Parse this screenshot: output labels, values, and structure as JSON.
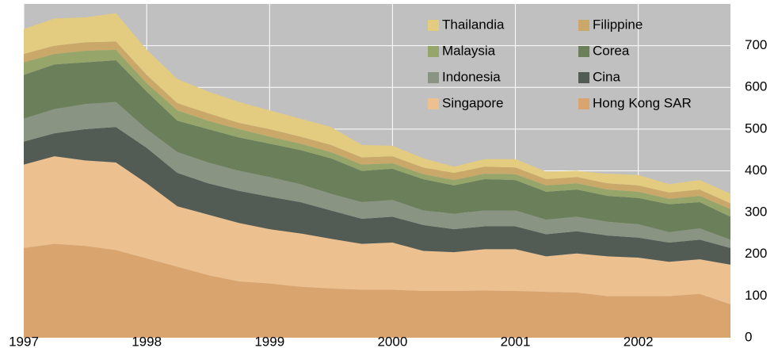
{
  "chart_data": {
    "type": "stacked_area",
    "x": [
      1997,
      1997.25,
      1997.5,
      1997.75,
      1998,
      1998.25,
      1998.5,
      1998.75,
      1999,
      1999.25,
      1999.5,
      1999.75,
      2000,
      2000.25,
      2000.5,
      2000.75,
      2001,
      2001.25,
      2001.5,
      2001.75,
      2002,
      2002.25,
      2002.5,
      2002.75
    ],
    "series": [
      {
        "name": "Thailandia",
        "color": "#e3cc80",
        "values": [
          60,
          65,
          60,
          68,
          60,
          58,
          52,
          50,
          45,
          43,
          43,
          30,
          25,
          22,
          15,
          18,
          20,
          18,
          15,
          23,
          25,
          20,
          23,
          23
        ]
      },
      {
        "name": "Filippine",
        "color": "#c9a86a",
        "values": [
          20,
          20,
          20,
          20,
          20,
          17,
          18,
          15,
          18,
          17,
          17,
          17,
          17,
          16,
          17,
          17,
          16,
          15,
          15,
          15,
          15,
          15,
          15,
          14
        ]
      },
      {
        "name": "Malaysia",
        "color": "#96a66a",
        "values": [
          30,
          25,
          28,
          25,
          20,
          25,
          20,
          20,
          17,
          15,
          15,
          15,
          13,
          12,
          13,
          13,
          14,
          15,
          15,
          15,
          15,
          13,
          15,
          18
        ]
      },
      {
        "name": "Corea",
        "color": "#6b7f5b",
        "values": [
          105,
          107,
          100,
          100,
          90,
          75,
          80,
          80,
          80,
          82,
          85,
          75,
          75,
          75,
          68,
          75,
          73,
          67,
          65,
          62,
          63,
          67,
          63,
          55
        ]
      },
      {
        "name": "Indonesia",
        "color": "#8a9483",
        "values": [
          55,
          58,
          60,
          60,
          45,
          50,
          50,
          48,
          47,
          43,
          40,
          40,
          40,
          35,
          37,
          38,
          38,
          35,
          35,
          33,
          32,
          25,
          27,
          20
        ]
      },
      {
        "name": "Cina",
        "color": "#525c55",
        "values": [
          55,
          55,
          75,
          85,
          85,
          80,
          75,
          77,
          78,
          75,
          68,
          60,
          62,
          62,
          55,
          55,
          55,
          53,
          53,
          50,
          48,
          46,
          47,
          40
        ]
      },
      {
        "name": "Singapore",
        "color": "#edc090",
        "values": [
          200,
          210,
          205,
          210,
          180,
          145,
          145,
          140,
          130,
          128,
          119,
          110,
          113,
          96,
          93,
          99,
          100,
          85,
          94,
          95,
          92,
          82,
          83,
          95
        ]
      },
      {
        "name": "Hong Kong SAR",
        "color": "#d9a46e",
        "values": [
          215,
          225,
          220,
          210,
          190,
          170,
          150,
          135,
          130,
          122,
          118,
          115,
          115,
          112,
          112,
          113,
          112,
          110,
          108,
          100,
          100,
          100,
          105,
          80
        ]
      }
    ],
    "xlim": [
      1997,
      2002.75
    ],
    "xticks": [
      1997,
      1998,
      1999,
      2000,
      2001,
      2002
    ],
    "ylim": [
      0,
      800
    ],
    "yticks": [
      0,
      100,
      200,
      300,
      400,
      500,
      600,
      700
    ],
    "grid": true,
    "legend": "upper right",
    "background": "#c0c0c0"
  }
}
